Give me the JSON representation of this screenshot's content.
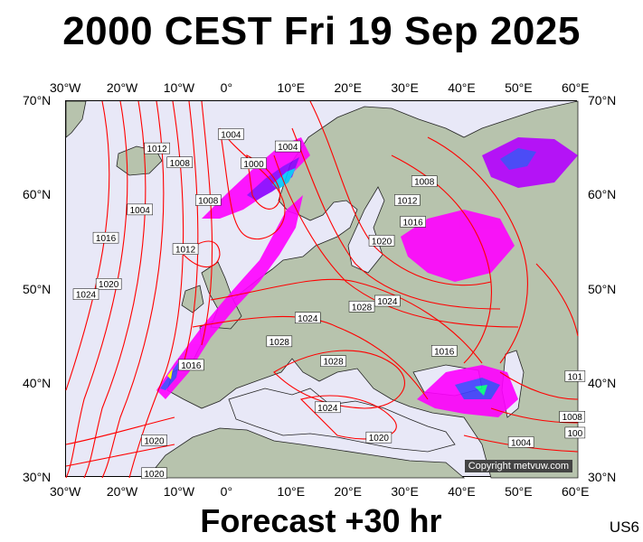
{
  "title": "2000 CEST Fri 19 Sep 2025",
  "footer": "Forecast +30 hr",
  "model_tag": "US6",
  "copyright": "Copyright metvuw.com",
  "map": {
    "type": "weather-forecast-map",
    "region": "Europe / North Atlantic",
    "lon_range": [
      -30,
      60
    ],
    "lat_range": [
      30,
      70
    ],
    "lon_ticks": [
      "30°W",
      "20°W",
      "10°W",
      "0°",
      "10°E",
      "20°E",
      "30°E",
      "40°E",
      "50°E",
      "60°E"
    ],
    "lat_ticks": [
      "70°N",
      "60°N",
      "50°N",
      "40°N",
      "30°N"
    ],
    "isobar_color": "#ff0000",
    "precip_colors": [
      "#ff00ff",
      "#b400ff",
      "#4040ff",
      "#00c8ff",
      "#00ff80",
      "#ffff00"
    ],
    "isobar_labels": [
      {
        "text": "1012",
        "lon": -14,
        "lat": 65
      },
      {
        "text": "1008",
        "lon": -10,
        "lat": 63.5
      },
      {
        "text": "1004",
        "lon": -1,
        "lat": 66.5
      },
      {
        "text": "1000",
        "lon": 3,
        "lat": 63.4
      },
      {
        "text": "1004",
        "lon": 9,
        "lat": 65.2
      },
      {
        "text": "1008",
        "lon": 33,
        "lat": 61.5
      },
      {
        "text": "1012",
        "lon": 30,
        "lat": 59.5
      },
      {
        "text": "1016",
        "lon": 31,
        "lat": 57.2
      },
      {
        "text": "1020",
        "lon": 25.5,
        "lat": 55.2
      },
      {
        "text": "1008",
        "lon": -5,
        "lat": 59.5
      },
      {
        "text": "1004",
        "lon": -17,
        "lat": 58.5
      },
      {
        "text": "1016",
        "lon": -23,
        "lat": 55.5
      },
      {
        "text": "1012",
        "lon": -9,
        "lat": 54.3
      },
      {
        "text": "1020",
        "lon": -22.5,
        "lat": 50.6
      },
      {
        "text": "1024",
        "lon": -26.5,
        "lat": 49.5
      },
      {
        "text": "1024",
        "lon": 12.5,
        "lat": 47
      },
      {
        "text": "1028",
        "lon": 22,
        "lat": 48.2
      },
      {
        "text": "1024",
        "lon": 26.5,
        "lat": 48.8
      },
      {
        "text": "1028",
        "lon": 7.5,
        "lat": 44.5
      },
      {
        "text": "1028",
        "lon": 17,
        "lat": 42.4
      },
      {
        "text": "1016",
        "lon": -8,
        "lat": 42
      },
      {
        "text": "1016",
        "lon": 36.5,
        "lat": 43.5
      },
      {
        "text": "1024",
        "lon": 16,
        "lat": 37.5
      },
      {
        "text": "1020",
        "lon": 25,
        "lat": 34.3
      },
      {
        "text": "1020",
        "lon": -14.5,
        "lat": 34
      },
      {
        "text": "1020",
        "lon": -14.5,
        "lat": 30.5
      },
      {
        "text": "1004",
        "lon": 50,
        "lat": 33.8
      },
      {
        "text": "1008",
        "lon": 59,
        "lat": 36.5
      },
      {
        "text": "100",
        "lon": 59.5,
        "lat": 34.8
      },
      {
        "text": "101",
        "lon": 59.5,
        "lat": 40.8
      }
    ]
  }
}
